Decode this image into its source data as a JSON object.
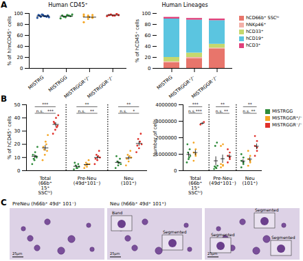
{
  "chart_data": [
    {
      "panel_label": "A",
      "type": "scatter",
      "title": "Human CD45⁺",
      "ylabel": "% of h/mCD45⁺ cells",
      "categories": [
        "MISTRG",
        "MISTRGG",
        "MISTRGGR⁺/⁻",
        "MISTRGGR⁻/⁻"
      ],
      "colors": [
        "#1f4e9c",
        "#2e8b3a",
        "#f5a623",
        "#e0302a"
      ],
      "values": [
        [
          92,
          94,
          95,
          96,
          97,
          98,
          95,
          93,
          96,
          97,
          94
        ],
        [
          91,
          93,
          95,
          96,
          97,
          98,
          94,
          96
        ],
        [
          84,
          90,
          92,
          95,
          96,
          97,
          98,
          94,
          93
        ],
        [
          95,
          96,
          97,
          98,
          99,
          97,
          96
        ]
      ],
      "means": [
        95.2,
        95,
        93.2,
        96.9
      ],
      "errors": [
        0.6,
        0.8,
        1.5,
        0.5
      ],
      "ylim": [
        0,
        100
      ],
      "yticks": [
        0,
        20,
        40,
        60,
        80,
        100
      ]
    },
    {
      "type": "bar",
      "stacked": true,
      "title": "Human Lineages",
      "ylabel": "% of hCD45⁺ cells",
      "categories": [
        "MISTRG",
        "MISTRGGR⁺/⁻",
        "MISTRGGR⁻/⁻"
      ],
      "series": [
        {
          "name": "hCD66b⁺ SSCʰⁱ",
          "color": "#e8756b",
          "values": [
            10,
            18,
            35
          ]
        },
        {
          "name": "hNKp46⁺",
          "color": "#f3b0a8",
          "values": [
            2,
            2,
            2
          ]
        },
        {
          "name": "hCD33⁺",
          "color": "#c5d86d",
          "values": [
            8,
            8,
            7
          ]
        },
        {
          "name": "hCD19⁺",
          "color": "#5bc5e0",
          "values": [
            70,
            60,
            43
          ]
        },
        {
          "name": "hCD3⁺",
          "color": "#e0407a",
          "values": [
            3,
            3,
            3
          ]
        }
      ],
      "legend": "right",
      "ylim": [
        0,
        100
      ],
      "yticks": [
        0,
        20,
        40,
        60,
        80,
        100
      ]
    },
    {
      "panel_label": "B",
      "type": "scatter",
      "ylabel": "% of hCD45⁺ cells",
      "categories": [
        "Total (66b⁺ 15⁺ SSCʰⁱ)",
        "Pre-Neu (49d⁺101⁻)",
        "Neu (101⁺)"
      ],
      "series": [
        {
          "name": "MISTRGG",
          "color": "#2e8b3a",
          "values": [
            [
              5,
              8,
              10,
              12,
              14,
              18,
              9,
              11
            ],
            [
              1,
              2,
              3,
              4,
              5,
              6,
              2
            ],
            [
              2,
              4,
              5,
              7,
              9,
              11,
              6
            ]
          ],
          "means": [
            10.9,
            3.3,
            6.3
          ],
          "errors": [
            1.5,
            0.7,
            1.2
          ]
        },
        {
          "name": "MISTRGGR⁺/⁻",
          "color": "#f5a623",
          "values": [
            [
              8,
              12,
              15,
              18,
              22,
              27,
              16,
              20
            ],
            [
              2,
              3,
              5,
              6,
              8,
              4,
              5
            ],
            [
              4,
              7,
              10,
              12,
              15,
              9,
              11
            ]
          ],
          "means": [
            17.3,
            4.7,
            9.7
          ],
          "errors": [
            2.1,
            0.8,
            1.3
          ]
        },
        {
          "name": "MISTRGGR⁻/⁻",
          "color": "#e0302a",
          "values": [
            [
              28,
              31,
              34,
              37,
              40,
              42,
              36,
              33
            ],
            [
              5,
              8,
              10,
              12,
              15,
              9,
              11
            ],
            [
              14,
              17,
              20,
              24,
              28,
              19,
              22
            ]
          ],
          "means": [
            35.1,
            10,
            20.6
          ],
          "errors": [
            1.7,
            1.2,
            1.8
          ]
        }
      ],
      "comparisons": [
        {
          "category": 0,
          "groups": [
            0,
            2
          ],
          "label": "***"
        },
        {
          "category": 0,
          "groups": [
            0,
            1
          ],
          "label": "n.s."
        },
        {
          "category": 0,
          "groups": [
            1,
            2
          ],
          "label": "***"
        },
        {
          "category": 1,
          "groups": [
            0,
            2
          ],
          "label": "**"
        },
        {
          "category": 1,
          "groups": [
            0,
            1
          ],
          "label": "n.s."
        },
        {
          "category": 1,
          "groups": [
            1,
            2
          ],
          "label": "**"
        },
        {
          "category": 2,
          "groups": [
            0,
            2
          ],
          "label": "**"
        },
        {
          "category": 2,
          "groups": [
            0,
            1
          ],
          "label": "n.s."
        },
        {
          "category": 2,
          "groups": [
            1,
            2
          ],
          "label": "*"
        }
      ],
      "ylim": [
        0,
        50
      ],
      "yticks": [
        0,
        10,
        20,
        30,
        40,
        50
      ]
    },
    {
      "type": "scatter",
      "ylabel": "Number of cells",
      "categories": [
        "Total (66b⁺ 15⁺ SSCʰⁱ)",
        "Pre-Neu (49d⁺101⁻)",
        "Neu (101⁺)"
      ],
      "series": [
        {
          "name": "MISTRGG",
          "color": "#2e8b3a",
          "values": [
            [
              500000,
              700000,
              900000,
              1100000,
              1300000,
              1600000,
              800000
            ],
            [
              100000,
              200000,
              300000,
              1500000,
              1700000,
              250000,
              150000
            ],
            [
              200000,
              400000,
              600000,
              800000,
              1000000,
              500000
            ]
          ],
          "means": [
            990000,
            600000,
            580000
          ],
          "errors": [
            140000,
            270000,
            120000
          ]
        },
        {
          "name": "MISTRGGR⁺/⁻",
          "color": "#f5a623",
          "values": [
            [
              600000,
              900000,
              1100000,
              1300000,
              1700000,
              1000000
            ],
            [
              200000,
              300000,
              400000,
              1600000,
              1500000,
              350000
            ],
            [
              300000,
              500000,
              700000,
              900000,
              1200000,
              600000
            ]
          ],
          "means": [
            1100000,
            725000,
            700000
          ],
          "errors": [
            160000,
            250000,
            130000
          ]
        },
        {
          "name": "MISTRGGR⁻/⁻",
          "color": "#e0302a",
          "values": [
            [
              2800000,
              2950000
            ],
            [
              500000,
              700000,
              900000,
              1100000,
              1300000,
              800000
            ],
            [
              900000,
              1200000,
              1500000,
              1800000,
              2100000,
              1400000
            ]
          ],
          "means": [
            2875000,
            880000,
            1480000
          ],
          "errors": [
            75000,
            115000,
            170000
          ]
        }
      ],
      "comparisons": [
        {
          "category": 0,
          "groups": [
            0,
            2
          ],
          "label": "***"
        },
        {
          "category": 0,
          "groups": [
            0,
            1
          ],
          "label": "n.s."
        },
        {
          "category": 0,
          "groups": [
            1,
            2
          ],
          "label": "***"
        },
        {
          "category": 1,
          "groups": [
            0,
            2
          ],
          "label": "**"
        },
        {
          "category": 1,
          "groups": [
            0,
            1
          ],
          "label": "n.s."
        },
        {
          "category": 1,
          "groups": [
            1,
            2
          ],
          "label": "**"
        },
        {
          "category": 2,
          "groups": [
            0,
            2
          ],
          "label": "**"
        },
        {
          "category": 2,
          "groups": [
            0,
            1
          ],
          "label": "n.s."
        },
        {
          "category": 2,
          "groups": [
            1,
            2
          ],
          "label": "**"
        }
      ],
      "legend": "right",
      "ylim": [
        0,
        4000000
      ],
      "yticks": [
        0,
        1000000,
        2000000,
        3000000,
        4000000
      ]
    }
  ],
  "panel_c": {
    "panel_label": "C",
    "images": [
      {
        "title": "PreNeu (h66b⁺ 49d⁺ 101⁻)",
        "callouts": [],
        "scale_bar": "25μm"
      },
      {
        "title": "Neu (h66b⁺ 49d⁺ 101⁺)",
        "callouts": [
          "Band",
          "Segmented"
        ],
        "scale_bar": "25μm"
      },
      {
        "callouts": [
          "Segmented",
          "Segmented",
          "Segmented"
        ],
        "scale_bar": "25μm"
      }
    ]
  }
}
